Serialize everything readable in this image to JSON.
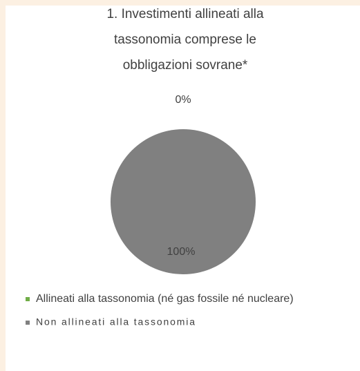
{
  "chart_data": {
    "type": "pie",
    "title": "1. Investimenti allineati alla tassonomia comprese le obbligazioni sovrane*",
    "categories": [
      "Allineati alla tassonomia (né gas fossile né nucleare)",
      "Non allineati alla tassonomia"
    ],
    "values": [
      0,
      100
    ],
    "value_labels": [
      "0%",
      "100%"
    ],
    "colors": [
      "#70ad47",
      "#808080"
    ]
  }
}
